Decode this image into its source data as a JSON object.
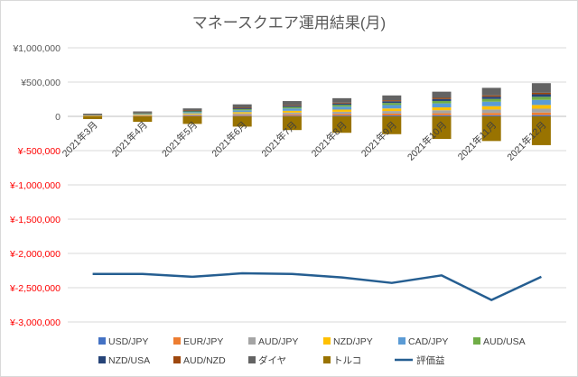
{
  "chart_data": {
    "type": "stacked-bar+line",
    "title": "マネースクエア運用結果(月)",
    "categories": [
      "2021年3月",
      "2021年4月",
      "2021年5月",
      "2021年6月",
      "2021年7月",
      "2021年8月",
      "2021年9月",
      "2021年10月",
      "2021年11月",
      "2021年12月"
    ],
    "ylim": [
      -3000000,
      1000000
    ],
    "yticks": [
      1000000,
      500000,
      0,
      -500000,
      -1000000,
      -1500000,
      -2000000,
      -2500000,
      -3000000
    ],
    "ytick_labels": [
      "¥1,000,000",
      "¥500,000",
      "0",
      "¥-500,000",
      "¥-1,000,000",
      "¥-1,500,000",
      "¥-2,000,000",
      "¥-2,500,000",
      "¥-3,000,000"
    ],
    "grid": true,
    "legend_position": "bottom",
    "colors": {
      "positive_tick": "#595959",
      "negative_tick": "#ff0000"
    },
    "series": [
      {
        "name": "USD/JPY",
        "kind": "bar",
        "color": "#4472c4",
        "values": [
          2000,
          4000,
          6000,
          9000,
          10000,
          12000,
          13000,
          15000,
          16000,
          18000
        ]
      },
      {
        "name": "EUR/JPY",
        "kind": "bar",
        "color": "#ed7d31",
        "values": [
          3000,
          5000,
          9000,
          13000,
          18000,
          22000,
          27000,
          30000,
          34000,
          38000
        ]
      },
      {
        "name": "AUD/JPY",
        "kind": "bar",
        "color": "#a5a5a5",
        "values": [
          5000,
          9000,
          14000,
          20000,
          27000,
          33000,
          38000,
          44000,
          50000,
          56000
        ]
      },
      {
        "name": "NZD/JPY",
        "kind": "bar",
        "color": "#ffc000",
        "values": [
          5000,
          9000,
          14000,
          20000,
          26000,
          32000,
          37000,
          42000,
          48000,
          54000
        ]
      },
      {
        "name": "CAD/JPY",
        "kind": "bar",
        "color": "#5b9bd5",
        "values": [
          6000,
          11000,
          18000,
          26000,
          34000,
          42000,
          50000,
          58000,
          66000,
          74000
        ]
      },
      {
        "name": "AUD/USA",
        "kind": "bar",
        "color": "#70ad47",
        "values": [
          4000,
          7000,
          11000,
          16000,
          21000,
          26000,
          30000,
          35000,
          40000,
          45000
        ]
      },
      {
        "name": "NZD/USA",
        "kind": "bar",
        "color": "#264478",
        "values": [
          3000,
          6000,
          9000,
          13000,
          17000,
          21000,
          25000,
          29000,
          33000,
          37000
        ]
      },
      {
        "name": "AUD/NZD",
        "kind": "bar",
        "color": "#9e480e",
        "values": [
          2000,
          3000,
          5000,
          8000,
          10000,
          12000,
          15000,
          17000,
          19000,
          22000
        ]
      },
      {
        "name": "ダイヤ",
        "kind": "bar",
        "color": "#636363",
        "values": [
          10000,
          18000,
          30000,
          50000,
          60000,
          65000,
          70000,
          90000,
          110000,
          140000
        ]
      },
      {
        "name": "トルコ",
        "kind": "bar",
        "color": "#997300",
        "values": [
          -40000,
          -80000,
          -110000,
          -150000,
          -200000,
          -240000,
          -260000,
          -330000,
          -360000,
          -420000
        ]
      },
      {
        "name": "評価益",
        "kind": "line",
        "color": "#255e91",
        "values": [
          -2300000,
          -2300000,
          -2340000,
          -2290000,
          -2300000,
          -2350000,
          -2430000,
          -2320000,
          -2680000,
          -2340000
        ]
      }
    ]
  }
}
